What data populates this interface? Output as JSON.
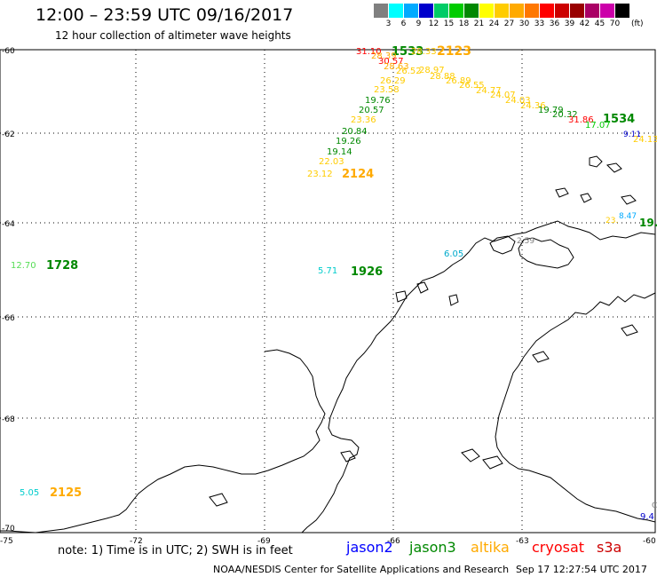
{
  "header": {
    "title": "12:00 – 23:59 UTC 09/16/2017",
    "subtitle": "12 hour collection of altimeter wave heights"
  },
  "legend": {
    "unit": "(ft)",
    "colors": [
      "#808080",
      "#00ffff",
      "#00aaff",
      "#0000cc",
      "#00cc66",
      "#00cc00",
      "#008800",
      "#ffff00",
      "#ffcc00",
      "#ffaa00",
      "#ff7700",
      "#ff0000",
      "#cc0000",
      "#990000",
      "#aa0066",
      "#cc00aa",
      "#000000"
    ],
    "labels": [
      "3",
      "6",
      "9",
      "12",
      "15",
      "18",
      "21",
      "24",
      "27",
      "30",
      "33",
      "36",
      "39",
      "42",
      "45",
      "70"
    ]
  },
  "axes": {
    "lat_labels": [
      "-60",
      "-62",
      "-64",
      "-66",
      "-68",
      "-70"
    ],
    "lon_labels": [
      "-75",
      "-72",
      "-69",
      "-66",
      "-63",
      "-60"
    ]
  },
  "observations": {
    "track_1533": [
      {
        "value": "31.10",
        "color": "#ff0000"
      },
      {
        "value": "1533",
        "color": "#008800",
        "is_time": true
      },
      {
        "value": "28.33",
        "color": "#ffcc00"
      },
      {
        "value": "2123",
        "color": "#ffaa00",
        "is_time": true
      },
      {
        "value": "28.39",
        "color": "#ffaa00"
      },
      {
        "value": "30.57",
        "color": "#ff0000"
      },
      {
        "value": "28.63",
        "color": "#ffaa00"
      },
      {
        "value": "26.52",
        "color": "#ffcc00"
      },
      {
        "value": "28.97",
        "color": "#ffcc00"
      },
      {
        "value": "26.29",
        "color": "#ffcc00"
      },
      {
        "value": "28.88",
        "color": "#ffcc00"
      },
      {
        "value": "26.89",
        "color": "#ffcc00"
      },
      {
        "value": "23.58",
        "color": "#ffcc00"
      },
      {
        "value": "26.55",
        "color": "#ffcc00"
      },
      {
        "value": "24.77",
        "color": "#ffcc00"
      },
      {
        "value": "24.07",
        "color": "#ffcc00"
      },
      {
        "value": "19.76",
        "color": "#008800"
      },
      {
        "value": "24.03",
        "color": "#ffcc00"
      },
      {
        "value": "20.57",
        "color": "#008800"
      },
      {
        "value": "24.36",
        "color": "#ffcc00"
      },
      {
        "value": "19.79",
        "color": "#008800"
      },
      {
        "value": "23.36",
        "color": "#ffcc00"
      },
      {
        "value": "20.32",
        "color": "#008800"
      },
      {
        "value": "31.86",
        "color": "#ff0000"
      },
      {
        "value": "1534",
        "color": "#008800",
        "is_time": true
      },
      {
        "value": "20.84",
        "color": "#008800"
      },
      {
        "value": "17.07",
        "color": "#00cc00"
      },
      {
        "value": "9.11",
        "color": "#0000cc"
      },
      {
        "value": "24.13",
        "color": "#ffcc00"
      },
      {
        "value": "19.26",
        "color": "#008800"
      },
      {
        "value": "19.14",
        "color": "#008800"
      },
      {
        "value": "22.03",
        "color": "#ffcc00"
      },
      {
        "value": "23.12",
        "color": "#ffcc00"
      },
      {
        "value": "2124",
        "color": "#ffaa00",
        "is_time": true
      }
    ],
    "other": [
      {
        "value": "12.70",
        "color": "#55dd55"
      },
      {
        "value": "1728",
        "color": "#008800",
        "is_time": true
      },
      {
        "value": "5.71",
        "color": "#00cccc"
      },
      {
        "value": "1926",
        "color": "#008800",
        "is_time": true
      },
      {
        "value": "6.05",
        "color": "#00aacc"
      },
      {
        "value": "2.59",
        "color": "#808080"
      },
      {
        "value": "8.47",
        "color": "#00aaff"
      },
      {
        "value": "23.",
        "color": "#ffcc00"
      },
      {
        "value": "19.",
        "color": "#008800"
      },
      {
        "value": "5.05",
        "color": "#00cccc"
      },
      {
        "value": "2125",
        "color": "#ffaa00",
        "is_time": true
      },
      {
        "value": "9.4",
        "color": "#0000cc"
      },
      {
        "value": "C",
        "color": "#808080"
      }
    ]
  },
  "footer": {
    "note": "note: 1) Time is in UTC; 2) SWH is in feet",
    "satellites": [
      {
        "name": "jason2",
        "color": "#0000ff"
      },
      {
        "name": "jason3",
        "color": "#008800"
      },
      {
        "name": "altika",
        "color": "#ffaa00"
      },
      {
        "name": "cryosat",
        "color": "#ff0000"
      },
      {
        "name": "s3a",
        "color": "#cc0000"
      }
    ],
    "credit": "NOAA/NESDIS Center for Satellite Applications and Research",
    "timestamp": "Sep 17 12:27:54 UTC 2017"
  }
}
